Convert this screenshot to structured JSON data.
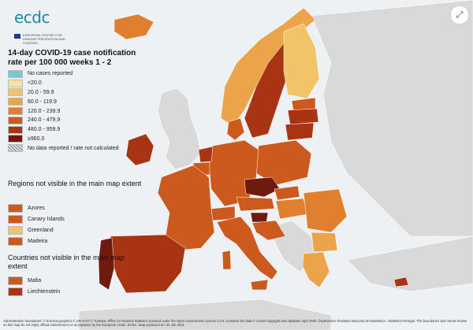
{
  "logo": {
    "text": "ecdc",
    "subtitle": "EUROPEAN CENTRE FOR DISEASE PREVENTION AND CONTROL"
  },
  "title": "14-day COVID-19 case notification rate per 100 000 weeks 1 - 2",
  "legend": [
    {
      "label": "No cases reported",
      "color": "#7cc6cf"
    },
    {
      "label": "<20.0",
      "color": "#f7e29a"
    },
    {
      "label": "20.0 - 59.9",
      "color": "#f2c46a"
    },
    {
      "label": "60.0 - 119.9",
      "color": "#eba44a"
    },
    {
      "label": "120.0 - 239.9",
      "color": "#e07f2e"
    },
    {
      "label": "240.0 - 479.9",
      "color": "#cc5a1e"
    },
    {
      "label": "480.0 - 959.9",
      "color": "#a83414"
    },
    {
      "label": "≥960.0",
      "color": "#6e1a0c"
    },
    {
      "label": "No data reported / rate not calculated",
      "color": "#bdbdbd"
    }
  ],
  "regions_heading": "Regions not visible in the main map extent",
  "regions": [
    {
      "label": "Azores",
      "color": "#cc5a1e"
    },
    {
      "label": "Canary Islands",
      "color": "#cc5a1e"
    },
    {
      "label": "Greenland",
      "color": "#f2c46a"
    },
    {
      "label": "Madeira",
      "color": "#cc5a1e"
    }
  ],
  "countries_heading": "Countries not visible in the main map extent",
  "countries": [
    {
      "label": "Malta",
      "color": "#cc5a1e"
    },
    {
      "label": "Liechtenstein",
      "color": "#a83414"
    }
  ],
  "footer": "Administrative boundaries: © EuroGeographics © UN–FAO © Turkstat. Office for National Statistics licensed under the Open Government Licence v.3.0. Contains OS data © Crown copyright and database right 2020. ©Kartverket ©Instituto Nacional de Estatística - Statistics Portugal. The boundaries and names shown on this map do not imply official endorsement or acceptance by the European Union. ECDC. Map produced on: 20 Jan 2021",
  "expand_icon": "expand-icon"
}
